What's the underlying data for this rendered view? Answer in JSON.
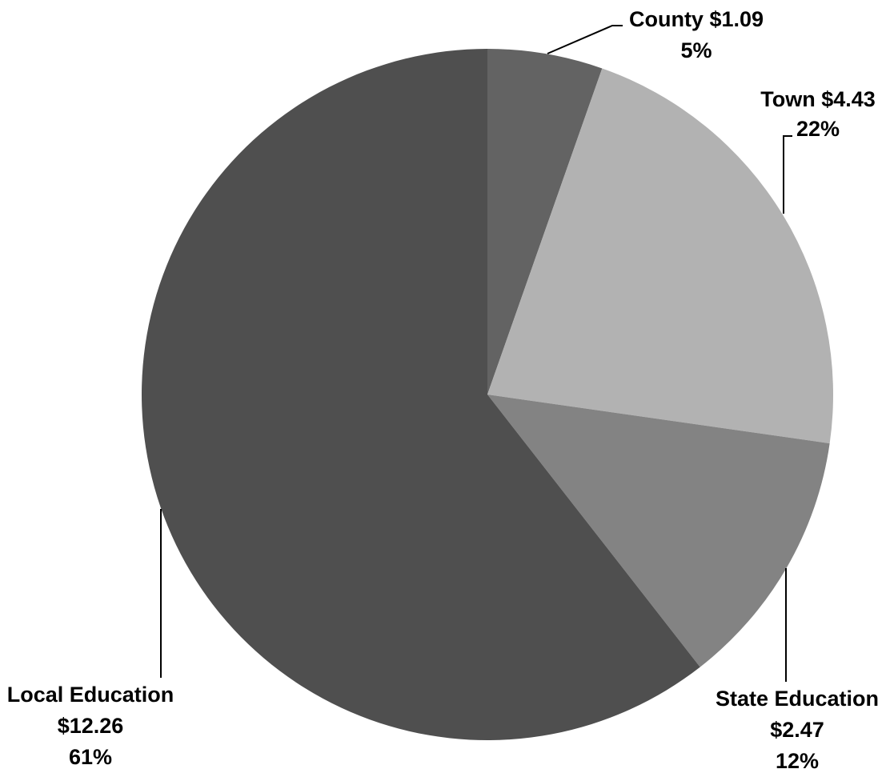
{
  "chart_data": {
    "type": "pie",
    "title": "",
    "legend": "none",
    "slices": [
      {
        "key": "county",
        "label": "County",
        "value": 1.09,
        "value_label": "$1.09",
        "percent_label": "5%",
        "color": "#636363"
      },
      {
        "key": "town",
        "label": "Town",
        "value": 4.43,
        "value_label": "$4.43",
        "percent_label": "22%",
        "color": "#b2b2b2"
      },
      {
        "key": "state-education",
        "label": "State Education",
        "value": 2.47,
        "value_label": "$2.47",
        "percent_label": "12%",
        "color": "#838383"
      },
      {
        "key": "local-education",
        "label": "Local Education",
        "value": 12.26,
        "value_label": "$12.26",
        "percent_label": "61%",
        "color": "#4f4f4f"
      }
    ]
  }
}
